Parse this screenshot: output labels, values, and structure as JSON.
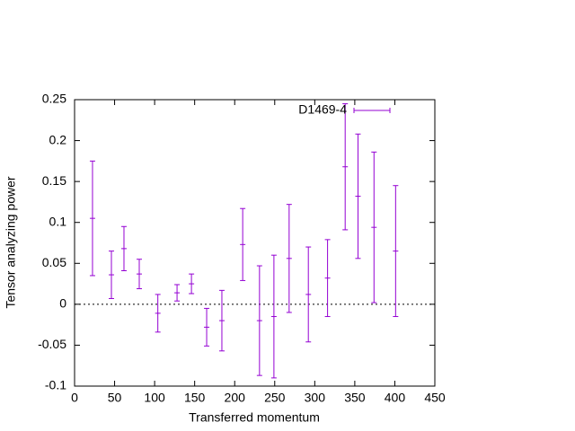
{
  "chart_data": {
    "type": "errorbar",
    "x_label": "Transferred momentum",
    "y_label": "Tensor analyzing power",
    "xlim": [
      0,
      450
    ],
    "ylim": [
      -0.1,
      0.25
    ],
    "xticks": [
      0,
      50,
      100,
      150,
      200,
      250,
      300,
      350,
      400,
      450
    ],
    "yticks": [
      -0.1,
      -0.05,
      0,
      0.05,
      0.1,
      0.15,
      0.2,
      0.25
    ],
    "zero_line": true,
    "legend_position": "top-right",
    "series": [
      {
        "name": "D1469-4",
        "color": "#9400d3",
        "x": [
          22.4,
          46,
          61.7,
          80.8,
          104,
          128,
          146,
          165,
          184,
          210,
          231,
          249,
          268,
          292,
          316,
          338,
          354,
          374,
          401
        ],
        "values": [
          0.105,
          0.036,
          0.068,
          0.037,
          -0.011,
          0.014,
          0.025,
          -0.028,
          -0.02,
          0.073,
          -0.02,
          -0.015,
          0.056,
          0.012,
          0.032,
          0.168,
          0.132,
          0.094,
          0.065
        ],
        "errors": [
          0.07,
          0.029,
          0.027,
          0.018,
          0.023,
          0.01,
          0.012,
          0.023,
          0.037,
          0.044,
          0.067,
          0.075,
          0.066,
          0.058,
          0.047,
          0.077,
          0.076,
          0.092,
          0.08
        ]
      }
    ]
  }
}
